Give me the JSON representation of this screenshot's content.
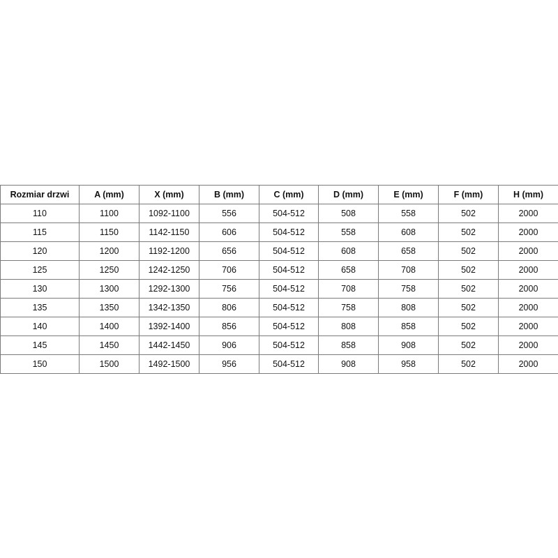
{
  "table": {
    "headers": [
      "Rozmiar drzwi",
      "A (mm)",
      "X (mm)",
      "B (mm)",
      "C (mm)",
      "D (mm)",
      "E (mm)",
      "F (mm)",
      "H (mm)"
    ],
    "rows": [
      [
        "110",
        "1100",
        "1092-1100",
        "556",
        "504-512",
        "508",
        "558",
        "502",
        "2000"
      ],
      [
        "115",
        "1150",
        "1142-1150",
        "606",
        "504-512",
        "558",
        "608",
        "502",
        "2000"
      ],
      [
        "120",
        "1200",
        "1192-1200",
        "656",
        "504-512",
        "608",
        "658",
        "502",
        "2000"
      ],
      [
        "125",
        "1250",
        "1242-1250",
        "706",
        "504-512",
        "658",
        "708",
        "502",
        "2000"
      ],
      [
        "130",
        "1300",
        "1292-1300",
        "756",
        "504-512",
        "708",
        "758",
        "502",
        "2000"
      ],
      [
        "135",
        "1350",
        "1342-1350",
        "806",
        "504-512",
        "758",
        "808",
        "502",
        "2000"
      ],
      [
        "140",
        "1400",
        "1392-1400",
        "856",
        "504-512",
        "808",
        "858",
        "502",
        "2000"
      ],
      [
        "145",
        "1450",
        "1442-1450",
        "906",
        "504-512",
        "858",
        "908",
        "502",
        "2000"
      ],
      [
        "150",
        "1500",
        "1492-1500",
        "956",
        "504-512",
        "908",
        "958",
        "502",
        "2000"
      ]
    ]
  }
}
